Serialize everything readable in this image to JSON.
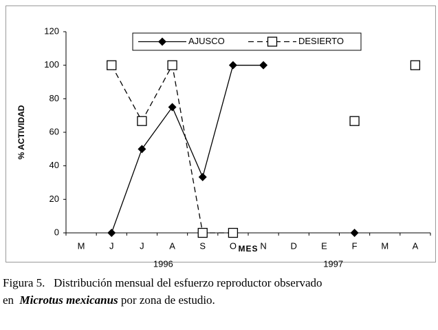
{
  "chart_data": {
    "type": "line",
    "categories": [
      "M",
      "J",
      "J",
      "A",
      "S",
      "O",
      "N",
      "D",
      "E",
      "F",
      "M",
      "A"
    ],
    "series": [
      {
        "name": "AJUSCO",
        "color": "#000000",
        "marker": "diamond",
        "dash": false,
        "values": [
          null,
          0,
          50,
          75,
          33.3,
          100,
          100,
          null,
          null,
          0,
          null,
          null
        ]
      },
      {
        "name": "DESIERTO",
        "color": "#000000",
        "marker": "square",
        "dash": true,
        "values": [
          null,
          100,
          66.7,
          100,
          0,
          0,
          null,
          null,
          null,
          66.7,
          null,
          100
        ]
      }
    ],
    "ylim": [
      0,
      120
    ],
    "yticks": [
      0,
      20,
      40,
      60,
      80,
      100,
      120
    ],
    "ylabel": "% ACTIVIDAD",
    "xlabel": "MES",
    "annotations": [
      "1996",
      "1997"
    ],
    "legend": "top",
    "grid": false
  },
  "caption": {
    "line1": "Figura 5.   Distribución mensual del esfuerzo reproductor observado",
    "prefix": "en",
    "species": "Microtus mexicanus",
    "suffix": "por zona de estudio."
  }
}
